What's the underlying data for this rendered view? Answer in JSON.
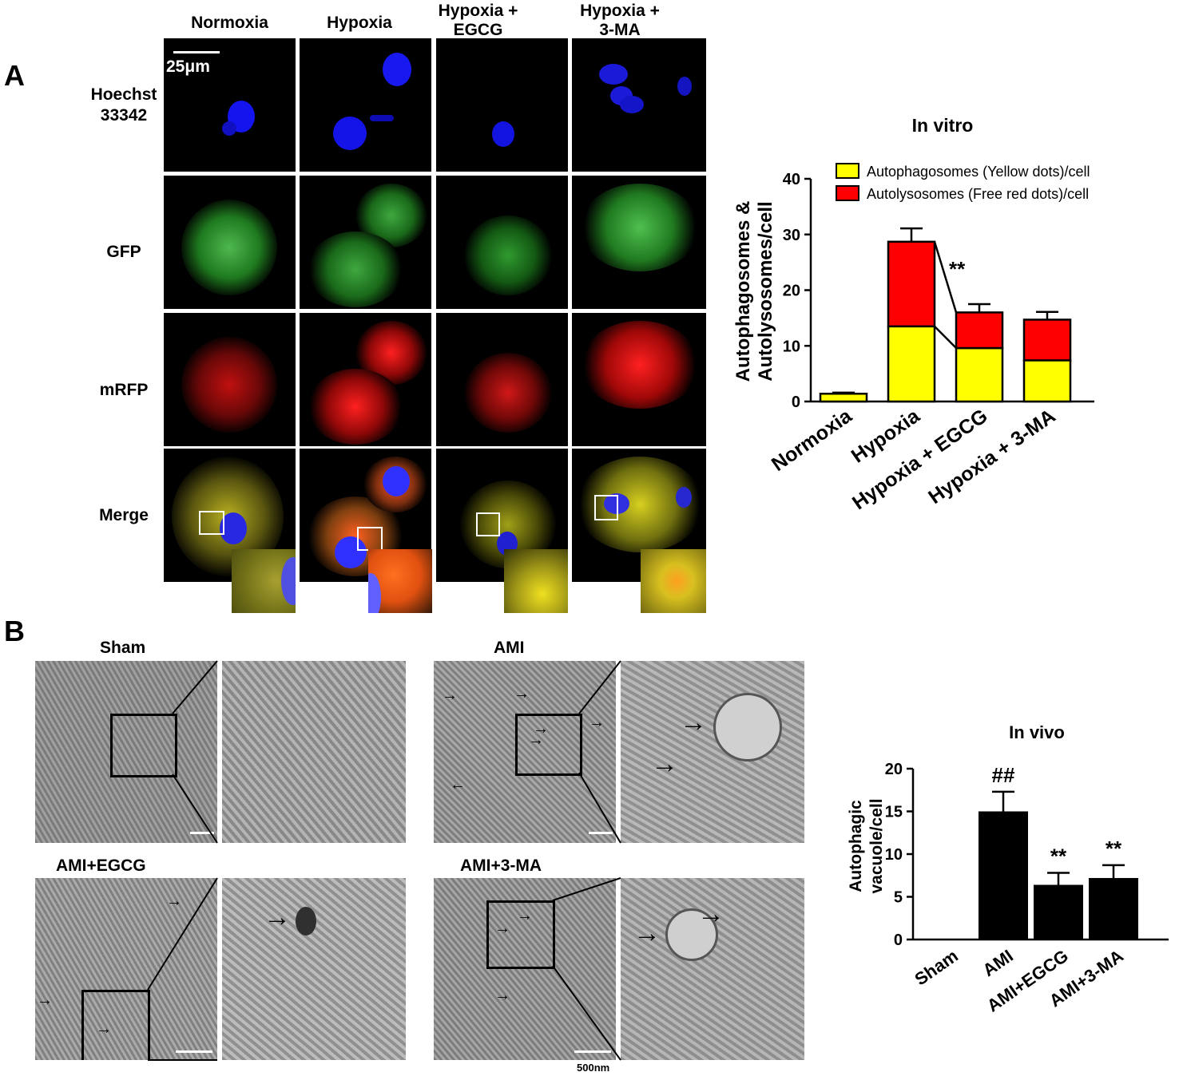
{
  "panel_a": {
    "letter": "A",
    "columns": [
      "Normoxia",
      "Hypoxia",
      "Hypoxia +\nEGCG",
      "Hypoxia +\n3-MA"
    ],
    "rows": [
      "Hoechst\n33342",
      "GFP",
      "mRFP",
      "Merge"
    ],
    "scale_bar": "25μm"
  },
  "panel_b": {
    "letter": "B",
    "groups": [
      "Sham",
      "AMI",
      "AMI+EGCG",
      "AMI+3-MA"
    ],
    "scale_bar": "500nm"
  },
  "colors": {
    "yellow": "#ffff00",
    "red": "#ff0000",
    "black": "#000000",
    "hoechst": "#1a1aff",
    "gfp": "#2fa52f",
    "mrfp": "#d01010",
    "merge": "#b8b020"
  },
  "chart_data": [
    {
      "type": "bar",
      "stacked": true,
      "title": "In vitro",
      "ylabel": "Autophagosomes &\nAutolysosomes/cell",
      "categories": [
        "Normoxia",
        "Hypoxia",
        "Hypoxia + EGCG",
        "Hypoxia + 3-MA"
      ],
      "series": [
        {
          "name": "Autophagosomes (Yellow dots)/cell",
          "color": "#ffff00",
          "values": [
            1.4,
            13.5,
            9.6,
            7.4
          ],
          "errors": [
            0.2,
            2.2,
            1.4,
            1.4
          ]
        },
        {
          "name": "Autolysosomes (Free red dots)/cell",
          "color": "#ff0000",
          "values": [
            0,
            15.2,
            6.4,
            7.3
          ],
          "errors": [
            0,
            2.4,
            1.5,
            1.4
          ]
        }
      ],
      "ylim": [
        0,
        40
      ],
      "yticks": [
        0,
        10,
        20,
        30,
        40
      ],
      "legend": "top-right",
      "annotation": "**"
    },
    {
      "type": "bar",
      "title": "In vivo",
      "ylabel": "Autophagic\nvacuole/cell",
      "categories": [
        "Sham",
        "AMI",
        "AMI+EGCG",
        "AMI+3-MA"
      ],
      "values": [
        0,
        15.0,
        6.4,
        7.2
      ],
      "errors": [
        0,
        2.3,
        1.4,
        1.5
      ],
      "annotations": [
        "",
        "##",
        "**",
        "**"
      ],
      "ylim": [
        0,
        20
      ],
      "yticks": [
        0,
        5,
        10,
        15,
        20
      ],
      "color": "#000000"
    }
  ]
}
